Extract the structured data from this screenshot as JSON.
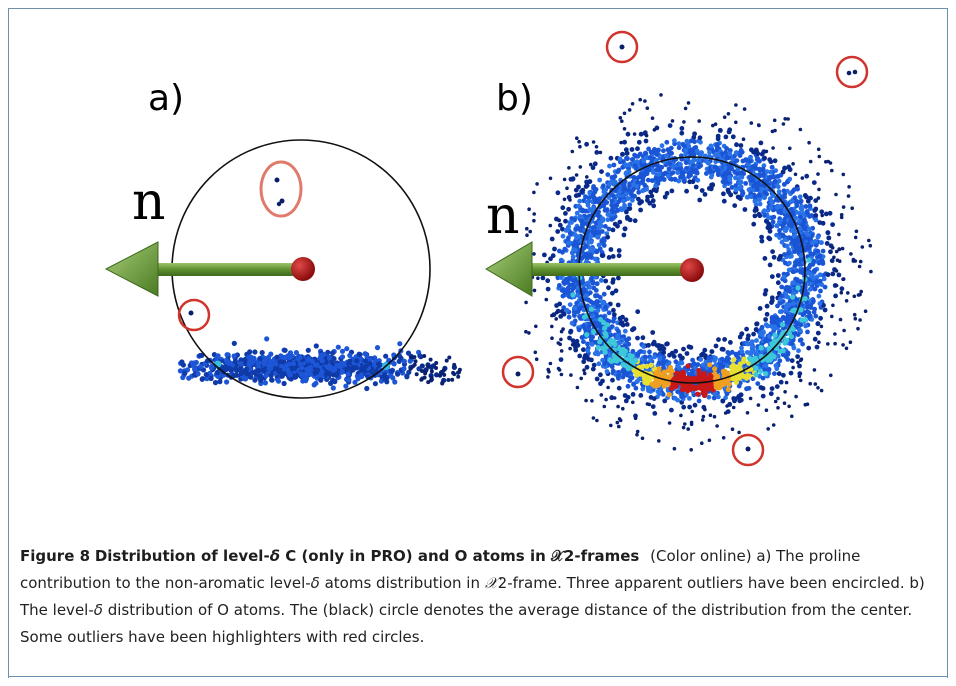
{
  "panels": {
    "a_label": "a)",
    "b_label": "b)",
    "n_label_a": "n",
    "n_label_b": "n"
  },
  "caption": {
    "figure_number": "Figure 8",
    "title_pre": "Distribution of level-",
    "title_delta": "δ",
    "title_mid": " C (only in PRO) and  O atoms in ",
    "title_chi": "𝒳",
    "title_post": "2-frames",
    "color_note": "(Color online)",
    "body_a1": " a) The proline contribution to the non-aromatic level-",
    "body_delta1": "δ",
    "body_a2": " atoms distribution in ",
    "body_chi1": "𝒳",
    "body_a3": "2-frame. Three apparent outliers have been encircled. b) The level-",
    "body_delta2": "δ",
    "body_b": " distribution of O atoms. The (black) circle denotes the average distance of the distribution from the center. Some outliers have been highlighters with red circles."
  },
  "colors": {
    "frame_line": "#6f8fb0",
    "arrow_green": "#6a9a3a",
    "center_dot": "#b01a1a",
    "outlier_circle": "#d0342c",
    "dense_blue": "#1a4fd0",
    "hot_red": "#c01010"
  }
}
